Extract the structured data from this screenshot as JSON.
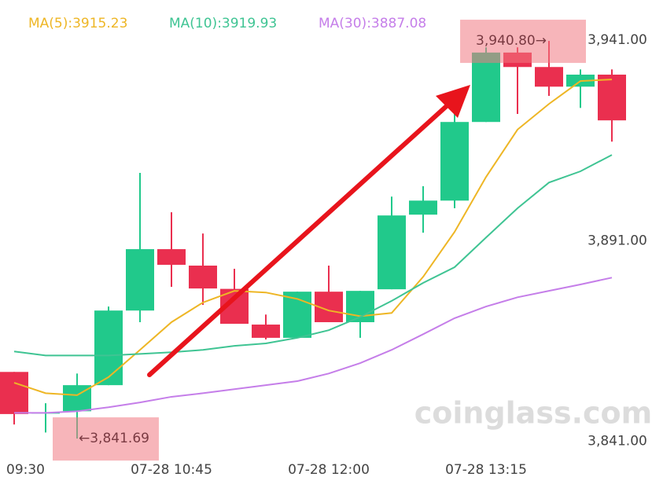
{
  "chart_data": {
    "type": "candlestick",
    "categories": [
      "09:30",
      null,
      null,
      null,
      null,
      "07-28 10:45",
      null,
      null,
      null,
      null,
      "07-28 12:00",
      null,
      null,
      null,
      null,
      "07-28 13:15",
      null,
      null,
      null,
      null
    ],
    "open": [
      3858.3,
      3848.1,
      3848.5,
      3855.0,
      3873.6,
      3888.9,
      3884.8,
      3879.0,
      3870.1,
      3866.8,
      3878.3,
      3870.7,
      3878.9,
      3897.5,
      3901.0,
      3920.6,
      3937.9,
      3934.3,
      3929.4,
      3932.4
    ],
    "high": [
      3858.3,
      3850.5,
      3857.9,
      3874.6,
      3907.9,
      3898.1,
      3892.8,
      3884.0,
      3872.6,
      3878.3,
      3884.8,
      3878.5,
      3902.0,
      3904.6,
      3923.6,
      3939.2,
      3939.2,
      3940.8,
      3933.7,
      3933.7
    ],
    "low": [
      3845.2,
      3843.2,
      3841.69,
      3855.0,
      3870.7,
      3879.5,
      3875.0,
      3870.3,
      3866.4,
      3866.8,
      3870.7,
      3866.8,
      3878.9,
      3893.0,
      3899.1,
      3920.6,
      3922.6,
      3927.1,
      3924.1,
      3915.7
    ],
    "close": [
      3847.8,
      3848.2,
      3855.0,
      3873.6,
      3888.9,
      3885.0,
      3879.1,
      3870.3,
      3866.8,
      3878.3,
      3870.7,
      3878.5,
      3897.3,
      3901.0,
      3920.6,
      3937.9,
      3934.3,
      3929.4,
      3932.4,
      3921.0
    ],
    "up_color": "#21c98b",
    "down_color": "#ea2f4f",
    "series": [
      {
        "name": "MA(5):3915.23",
        "color": "#eeb625",
        "values": [
          3855.6,
          3853.0,
          3852.5,
          3857.0,
          3863.8,
          3870.7,
          3875.6,
          3878.5,
          3878.1,
          3876.5,
          3873.6,
          3872.2,
          3873.0,
          3882.0,
          3893.2,
          3906.9,
          3918.7,
          3925.1,
          3930.8,
          3931.2
        ]
      },
      {
        "name": "MA(10):3919.93",
        "color": "#3fc493",
        "values": [
          3863.4,
          3862.4,
          3862.4,
          3862.4,
          3862.8,
          3863.2,
          3863.8,
          3864.8,
          3865.4,
          3866.8,
          3868.7,
          3872.0,
          3876.0,
          3880.5,
          3884.4,
          3891.8,
          3899.1,
          3905.5,
          3908.3,
          3912.4
        ]
      },
      {
        "name": "MA(30):3887.08",
        "color": "#c57ee9",
        "values": [
          3848.1,
          3848.1,
          3848.5,
          3849.5,
          3850.7,
          3852.1,
          3853.0,
          3854.0,
          3855.0,
          3856.0,
          3857.9,
          3860.5,
          3863.8,
          3867.7,
          3871.7,
          3874.6,
          3876.9,
          3878.5,
          3880.1,
          3881.8
        ]
      }
    ],
    "ylim": [
      3837.4,
      3951.0
    ],
    "yticks": [
      {
        "value": 3841,
        "label": "3,841.00"
      },
      {
        "value": 3891,
        "label": "3,891.00"
      },
      {
        "value": 3941,
        "label": "3,941.00"
      }
    ],
    "annotations": [
      {
        "value": 3940.8,
        "label": "3,940.80→",
        "index": 17
      },
      {
        "value": 3841.69,
        "label": "←3,841.69",
        "index": 2
      }
    ],
    "watermark": "coinglass.com"
  }
}
